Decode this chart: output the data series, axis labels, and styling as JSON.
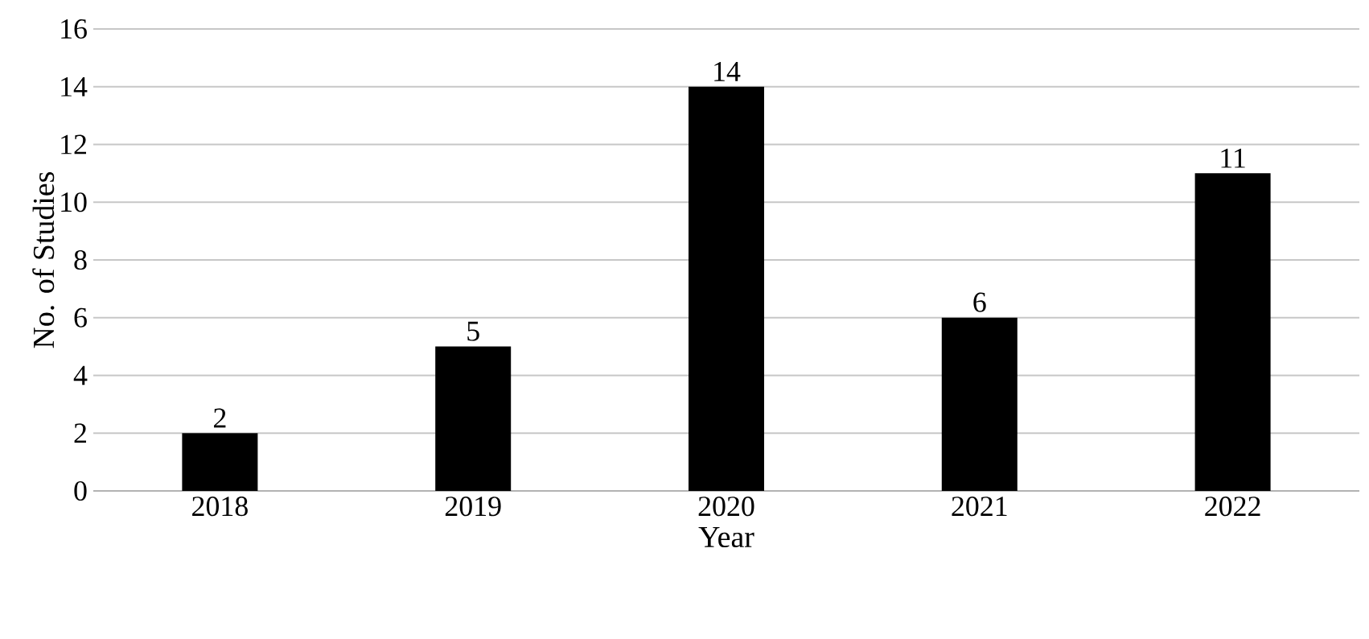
{
  "chart_data": {
    "type": "bar",
    "xlabel": "Year",
    "ylabel": "No. of Studies",
    "categories": [
      "2018",
      "2019",
      "2020",
      "2021",
      "2022"
    ],
    "values": [
      2,
      5,
      14,
      6,
      11
    ],
    "color": "#000000",
    "ylim": [
      0,
      16
    ],
    "yticks": [
      0,
      2,
      4,
      6,
      8,
      10,
      12,
      14,
      16
    ],
    "grid": "y",
    "data_labels": true
  }
}
